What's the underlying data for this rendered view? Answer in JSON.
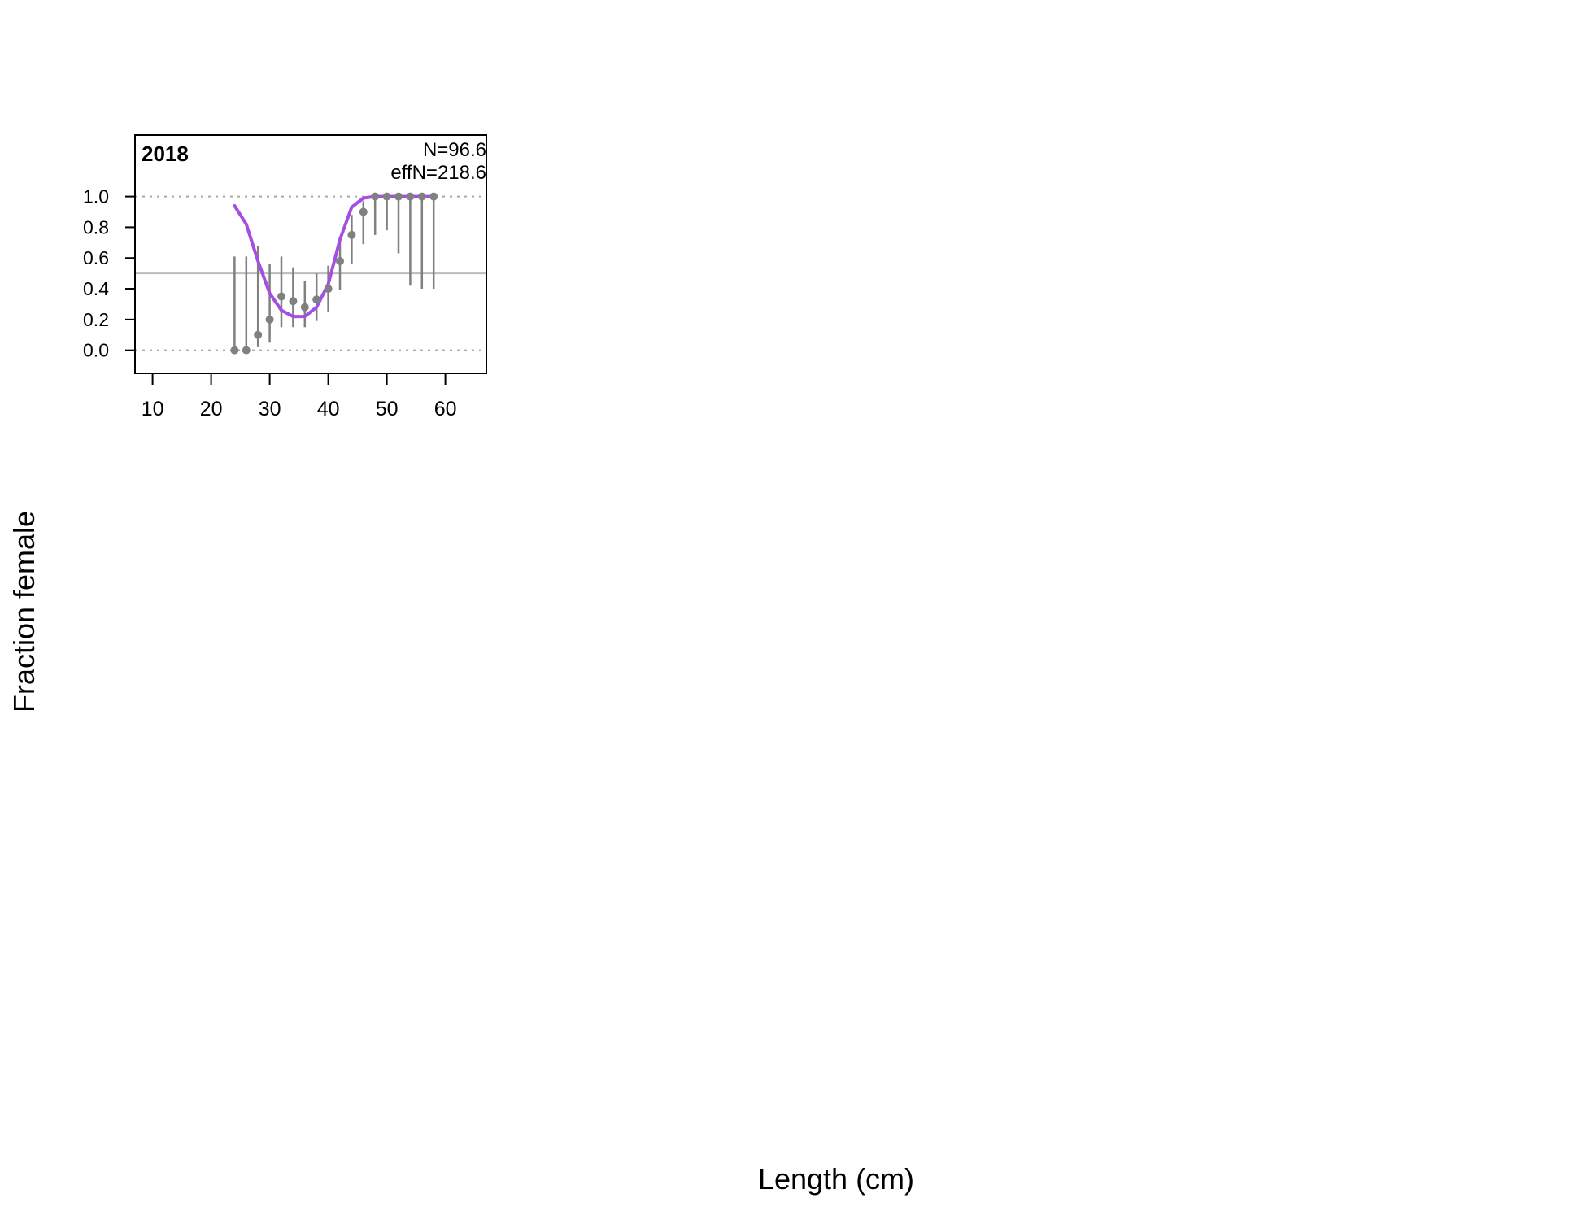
{
  "page": {
    "ylabel": "Fraction female",
    "xlabel": "Length (cm)"
  },
  "chart_data": {
    "type": "scatter",
    "panel_label": "2018",
    "annotations": [
      "N=96.6",
      "effN=218.6"
    ],
    "xlim": [
      7,
      67
    ],
    "ylim": [
      -0.15,
      1.4
    ],
    "x_ticks": [
      10,
      20,
      30,
      40,
      50,
      60
    ],
    "y_ticks": [
      0.0,
      0.2,
      0.4,
      0.6,
      0.8,
      1.0
    ],
    "y_tick_labels": [
      "0.0",
      "0.2",
      "0.4",
      "0.6",
      "0.8",
      "1.0"
    ],
    "reference_lines": {
      "solid": 0.5,
      "dotted": [
        0.0,
        1.0
      ]
    },
    "colors": {
      "observed": "#808080",
      "expected": "#a54ee2",
      "reference": "#bbbbbb",
      "grid": "#aaaaaa"
    },
    "observed": {
      "x": [
        24,
        26,
        28,
        30,
        32,
        34,
        36,
        38,
        40,
        42,
        44,
        46,
        48,
        50,
        52,
        54,
        56,
        58
      ],
      "y": [
        0.0,
        0.0,
        0.1,
        0.2,
        0.35,
        0.32,
        0.28,
        0.33,
        0.4,
        0.58,
        0.75,
        0.9,
        1.0,
        1.0,
        1.0,
        1.0,
        1.0,
        1.0
      ],
      "lower": [
        0.0,
        0.0,
        0.02,
        0.05,
        0.15,
        0.15,
        0.15,
        0.19,
        0.25,
        0.39,
        0.56,
        0.69,
        0.75,
        0.78,
        0.63,
        0.42,
        0.4,
        0.4
      ],
      "upper": [
        0.61,
        0.61,
        0.68,
        0.56,
        0.61,
        0.54,
        0.45,
        0.5,
        0.55,
        0.74,
        0.88,
        0.97,
        1.0,
        1.0,
        1.0,
        1.0,
        1.0,
        1.0
      ]
    },
    "expected": {
      "x": [
        24,
        26,
        28,
        30,
        32,
        34,
        36,
        38,
        40,
        42,
        44,
        46,
        48,
        50,
        52,
        54,
        56,
        58
      ],
      "y": [
        0.94,
        0.82,
        0.58,
        0.37,
        0.26,
        0.22,
        0.22,
        0.28,
        0.43,
        0.72,
        0.93,
        0.99,
        1.0,
        1.0,
        1.0,
        1.0,
        1.0,
        1.0
      ]
    }
  }
}
